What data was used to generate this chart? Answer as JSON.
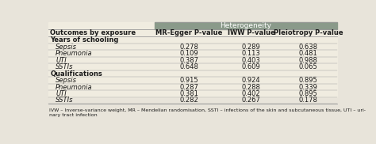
{
  "header_bg": "#8a9a8a",
  "header_text": "Heterogeneity",
  "header_color": "#ffffff",
  "col_headers": [
    "Outcomes by exposure",
    "MR-Egger P-value",
    "IWW P-value",
    "Pleiotropy P-value"
  ],
  "section1_label": "Years of schooling",
  "section2_label": "Qualifications",
  "rows": [
    {
      "label": "Sepsis",
      "italic": true,
      "section": 1,
      "v1": "0.278",
      "v2": "0.289",
      "v3": "0.638"
    },
    {
      "label": "Pneumonia",
      "italic": true,
      "section": 1,
      "v1": "0.109",
      "v2": "0.113",
      "v3": "0.481"
    },
    {
      "label": "UTI",
      "italic": true,
      "section": 1,
      "v1": "0.387",
      "v2": "0.403",
      "v3": "0.988"
    },
    {
      "label": "SSTIs",
      "italic": true,
      "section": 1,
      "v1": "0.648",
      "v2": "0.609",
      "v3": "0.065"
    },
    {
      "label": "Sepsis",
      "italic": true,
      "section": 2,
      "v1": "0.915",
      "v2": "0.924",
      "v3": "0.895"
    },
    {
      "label": "Pneumonia",
      "italic": true,
      "section": 2,
      "v1": "0.287",
      "v2": "0.288",
      "v3": "0.339"
    },
    {
      "label": "UTI",
      "italic": true,
      "section": 2,
      "v1": "0.381",
      "v2": "0.402",
      "v3": "0.895"
    },
    {
      "label": "SSTIs",
      "italic": true,
      "section": 2,
      "v1": "0.282",
      "v2": "0.267",
      "v3": "0.178"
    }
  ],
  "footnote_line1": "IVW – Inverse-variance weight, MR – Mendelian randomisation, SSTI – infections of the skin and subcutaneous tissue, UTI – uri-",
  "footnote_line2": "nary tract infection",
  "bg_color": "#e8e4da",
  "table_bg": "#f0ece0",
  "text_color": "#1a1a1a",
  "line_color": "#999999",
  "font_size": 6.0,
  "header_font_size": 6.5
}
